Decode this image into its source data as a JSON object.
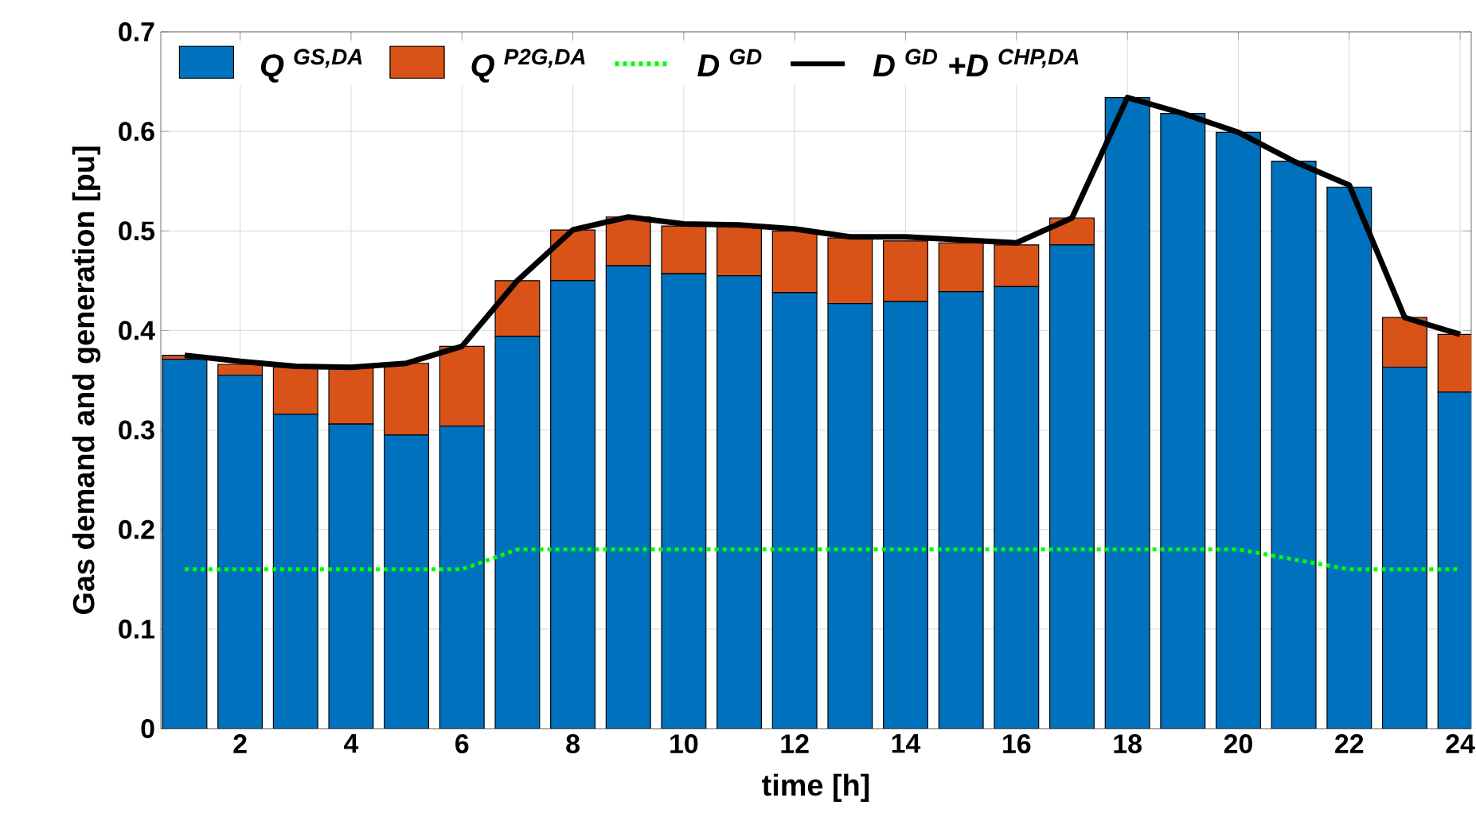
{
  "chart_data": {
    "type": "bar",
    "stacked": true,
    "xlabel": "time [h]",
    "ylabel": "Gas demand and generation [pu]",
    "x": [
      1,
      2,
      3,
      4,
      5,
      6,
      7,
      8,
      9,
      10,
      11,
      12,
      13,
      14,
      15,
      16,
      17,
      18,
      19,
      20,
      21,
      22,
      23,
      24
    ],
    "xlim": [
      0.57,
      24.2
    ],
    "xticks": [
      2,
      4,
      6,
      8,
      10,
      12,
      14,
      16,
      18,
      20,
      22,
      24
    ],
    "ylim": [
      0,
      0.7
    ],
    "yticks": [
      0,
      0.1,
      0.2,
      0.3,
      0.4,
      0.5,
      0.6,
      0.7
    ],
    "grid": true,
    "legend": "top",
    "series": [
      {
        "name": "Q $^{GS,DA}$",
        "color": "#0072bd",
        "values": [
          0.371,
          0.355,
          0.316,
          0.306,
          0.295,
          0.304,
          0.394,
          0.45,
          0.465,
          0.457,
          0.455,
          0.438,
          0.427,
          0.429,
          0.439,
          0.444,
          0.486,
          0.634,
          0.618,
          0.599,
          0.57,
          0.544,
          0.363,
          0.338
        ]
      },
      {
        "name": "Q $^{P2G,DA}$",
        "color": "#d95319",
        "values": [
          0.004,
          0.011,
          0.047,
          0.057,
          0.072,
          0.08,
          0.056,
          0.051,
          0.049,
          0.048,
          0.049,
          0.062,
          0.066,
          0.061,
          0.049,
          0.042,
          0.027,
          0,
          0,
          0,
          0,
          0,
          0.05,
          0.058
        ]
      },
      {
        "name": "D $^{GD}$",
        "type": "line",
        "color": "#00ff00",
        "line_style": "dotted",
        "values": [
          0.16,
          0.16,
          0.16,
          0.16,
          0.16,
          0.16,
          0.18,
          0.18,
          0.18,
          0.18,
          0.18,
          0.18,
          0.18,
          0.18,
          0.18,
          0.18,
          0.18,
          0.18,
          0.18,
          0.18,
          0.17,
          0.16,
          0.16,
          0.16
        ]
      },
      {
        "name": "D $^{GD}$ +D $^{CHP,DA}$",
        "type": "line",
        "color": "#000000",
        "line_style": "solid",
        "values": [
          0.375,
          0.369,
          0.364,
          0.363,
          0.367,
          0.384,
          0.45,
          0.501,
          0.514,
          0.507,
          0.506,
          0.502,
          0.494,
          0.494,
          0.491,
          0.488,
          0.513,
          0.634,
          0.618,
          0.599,
          0.57,
          0.546,
          0.413,
          0.396
        ]
      }
    ]
  }
}
